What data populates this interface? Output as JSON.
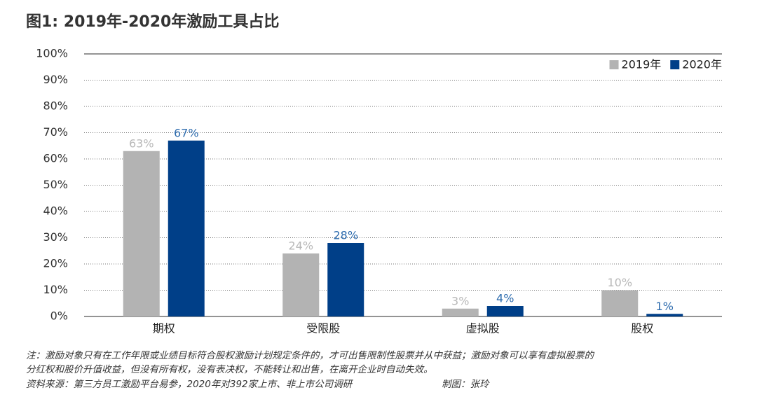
{
  "chart_data": {
    "type": "bar",
    "title": "图1: 2019年-2020年激励工具占比",
    "categories": [
      "期权",
      "受限股",
      "虚拟股",
      "股权"
    ],
    "series": [
      {
        "name": "2019年",
        "color": "#b3b3b3",
        "label_color": "#b8b8b8",
        "values": [
          63,
          24,
          3,
          10
        ],
        "value_labels": [
          "63%",
          "24%",
          "3%",
          "10%"
        ]
      },
      {
        "name": "2020年",
        "color": "#003f88",
        "label_color": "#2e6cae",
        "values": [
          67,
          28,
          4,
          1
        ],
        "value_labels": [
          "67%",
          "28%",
          "4%",
          "1%"
        ]
      }
    ],
    "ylim": [
      0,
      100
    ],
    "yticks": [
      {
        "value": 0,
        "label": "0%"
      },
      {
        "value": 10,
        "label": "10%"
      },
      {
        "value": 20,
        "label": "20%"
      },
      {
        "value": 30,
        "label": "30%"
      },
      {
        "value": 40,
        "label": "40%"
      },
      {
        "value": 50,
        "label": "50%"
      },
      {
        "value": 60,
        "label": "60%"
      },
      {
        "value": 70,
        "label": "70%"
      },
      {
        "value": 80,
        "label": "80%"
      },
      {
        "value": 90,
        "label": "90%"
      },
      {
        "value": 100,
        "label": "100%"
      }
    ],
    "grid": true,
    "legend": "top-right",
    "notes": [
      "注：激励对象只有在工作年限或业绩目标符合股权激励计划规定条件的，才可出售限制性股票并从中获益；激励对象可以享有虚拟股票的",
      "分红权和股价升值收益，但没有所有权，没有表决权，不能转让和出售，在离开企业时自动失效。"
    ],
    "source": "资料来源：第三方员工激励平台易参，2020年对392家上市、非上市公司调研",
    "credit": "制图：张玲"
  }
}
